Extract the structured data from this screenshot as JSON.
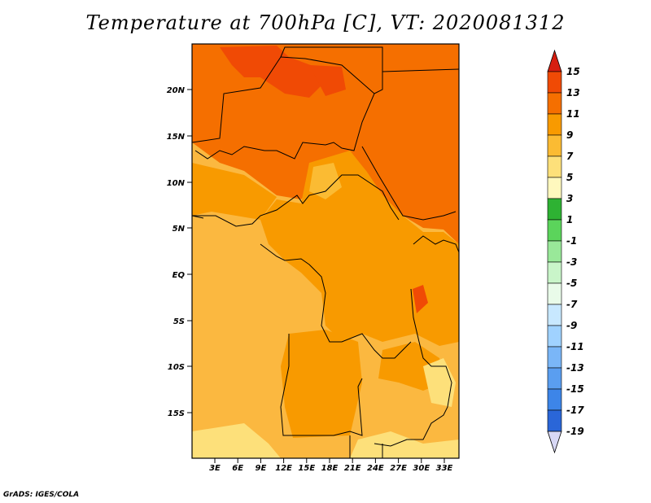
{
  "title": "Temperature at 700hPa [C], VT: 2020081312",
  "credit": "GrADS: IGES/COLA",
  "lat_labels": [
    "20N",
    "15N",
    "10N",
    "5N",
    "EQ",
    "5S",
    "10S",
    "15S"
  ],
  "lon_labels": [
    "3E",
    "6E",
    "9E",
    "12E",
    "15E",
    "18E",
    "21E",
    "24E",
    "27E",
    "30E",
    "33E"
  ],
  "colorbar": {
    "labels": [
      "15",
      "13",
      "11",
      "9",
      "7",
      "5",
      "3",
      "1",
      "-1",
      "-3",
      "-5",
      "-7",
      "-9",
      "-11",
      "-13",
      "-15",
      "-17",
      "-19"
    ],
    "colors": [
      "#e8300a",
      "#f04a05",
      "#f56f00",
      "#f89a00",
      "#fbbb33",
      "#fde07a",
      "#fff8be",
      "#2eb233",
      "#5bd45b",
      "#99e899",
      "#c9f5c9",
      "#e9fbe9",
      "#c8e8ff",
      "#a0d2ff",
      "#7ab6f7",
      "#5a9ef0",
      "#3d85e8",
      "#2a66d8",
      "#1a44c0",
      "#0d2a9e",
      "#06106a"
    ],
    "top_cap_color": "#d61e10",
    "bottom_cap_color": "#d8d8f5"
  },
  "map": {
    "background_color": "#fbb840",
    "extent_degrees": {
      "lon_min": 0,
      "lon_max": 34,
      "lat_min": -20,
      "lat_max": 25
    }
  }
}
